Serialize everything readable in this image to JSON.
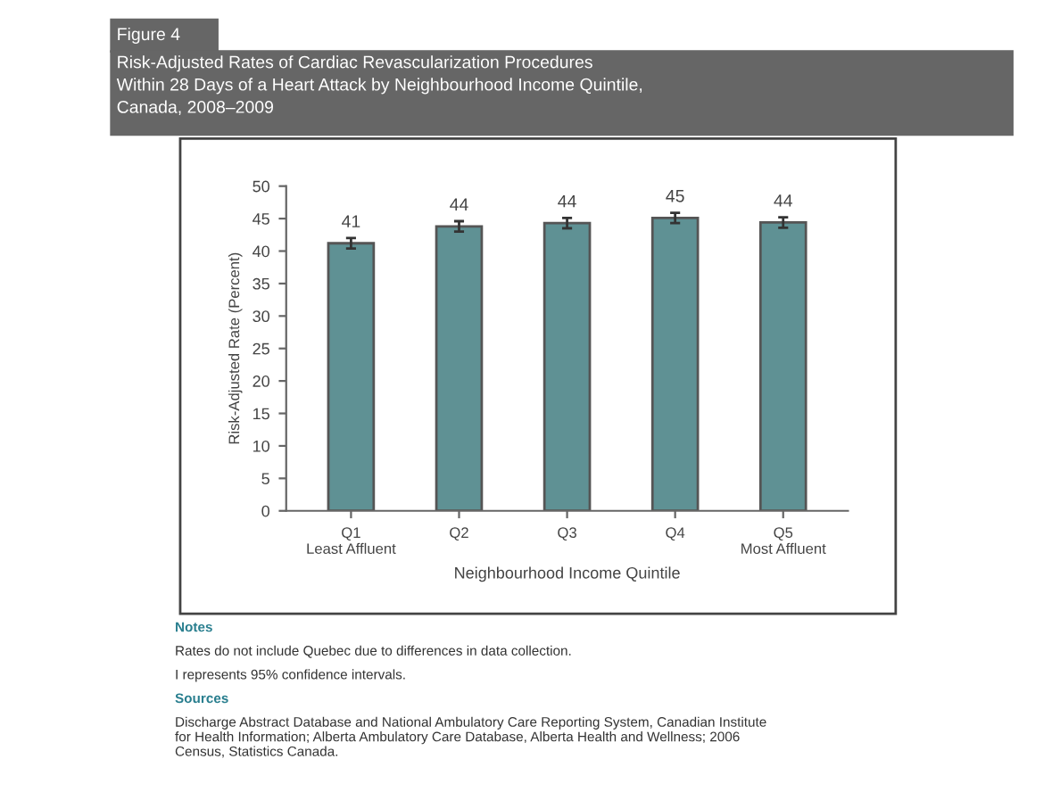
{
  "chart_data": {
    "type": "bar",
    "subtitle": "Figure 4",
    "title": "Risk-Adjusted Rates of Cardiac Revascularization Procedures\nWithin 28 Days of a Heart Attack by Neighbourhood Income Quintile,\nCanada, 2008–2009",
    "xlabel": "Neighbourhood Income Quintile",
    "ylabel": "Risk-Adjusted Rate (Percent)",
    "categories": [
      "Q1\nLeast Affluent",
      "Q2",
      "Q3",
      "Q4",
      "Q5\nMost Affluent"
    ],
    "values": [
      41.2,
      43.8,
      44.3,
      45.1,
      44.4
    ],
    "value_labels": [
      "41",
      "44",
      "44",
      "45",
      "44"
    ],
    "errors": [
      0.8,
      0.8,
      0.8,
      0.8,
      0.8
    ],
    "color": "#5f9194",
    "ylim": [
      0,
      50
    ],
    "yticks": [
      0,
      5,
      10,
      15,
      20,
      25,
      30,
      35,
      40,
      45,
      50
    ],
    "grid": false,
    "annotations": [
      "Notes",
      "Rates do not include Quebec due to differences in data collection.",
      "I represents 95% confidence intervals.",
      "Sources",
      "Discharge Abstract Database and National Ambulatory Care Reporting System, Canadian Institute\nfor Health Information; Alberta Ambulatory Care Database, Alberta Health and Wellness; 2006\nCensus, Statistics Canada."
    ]
  }
}
